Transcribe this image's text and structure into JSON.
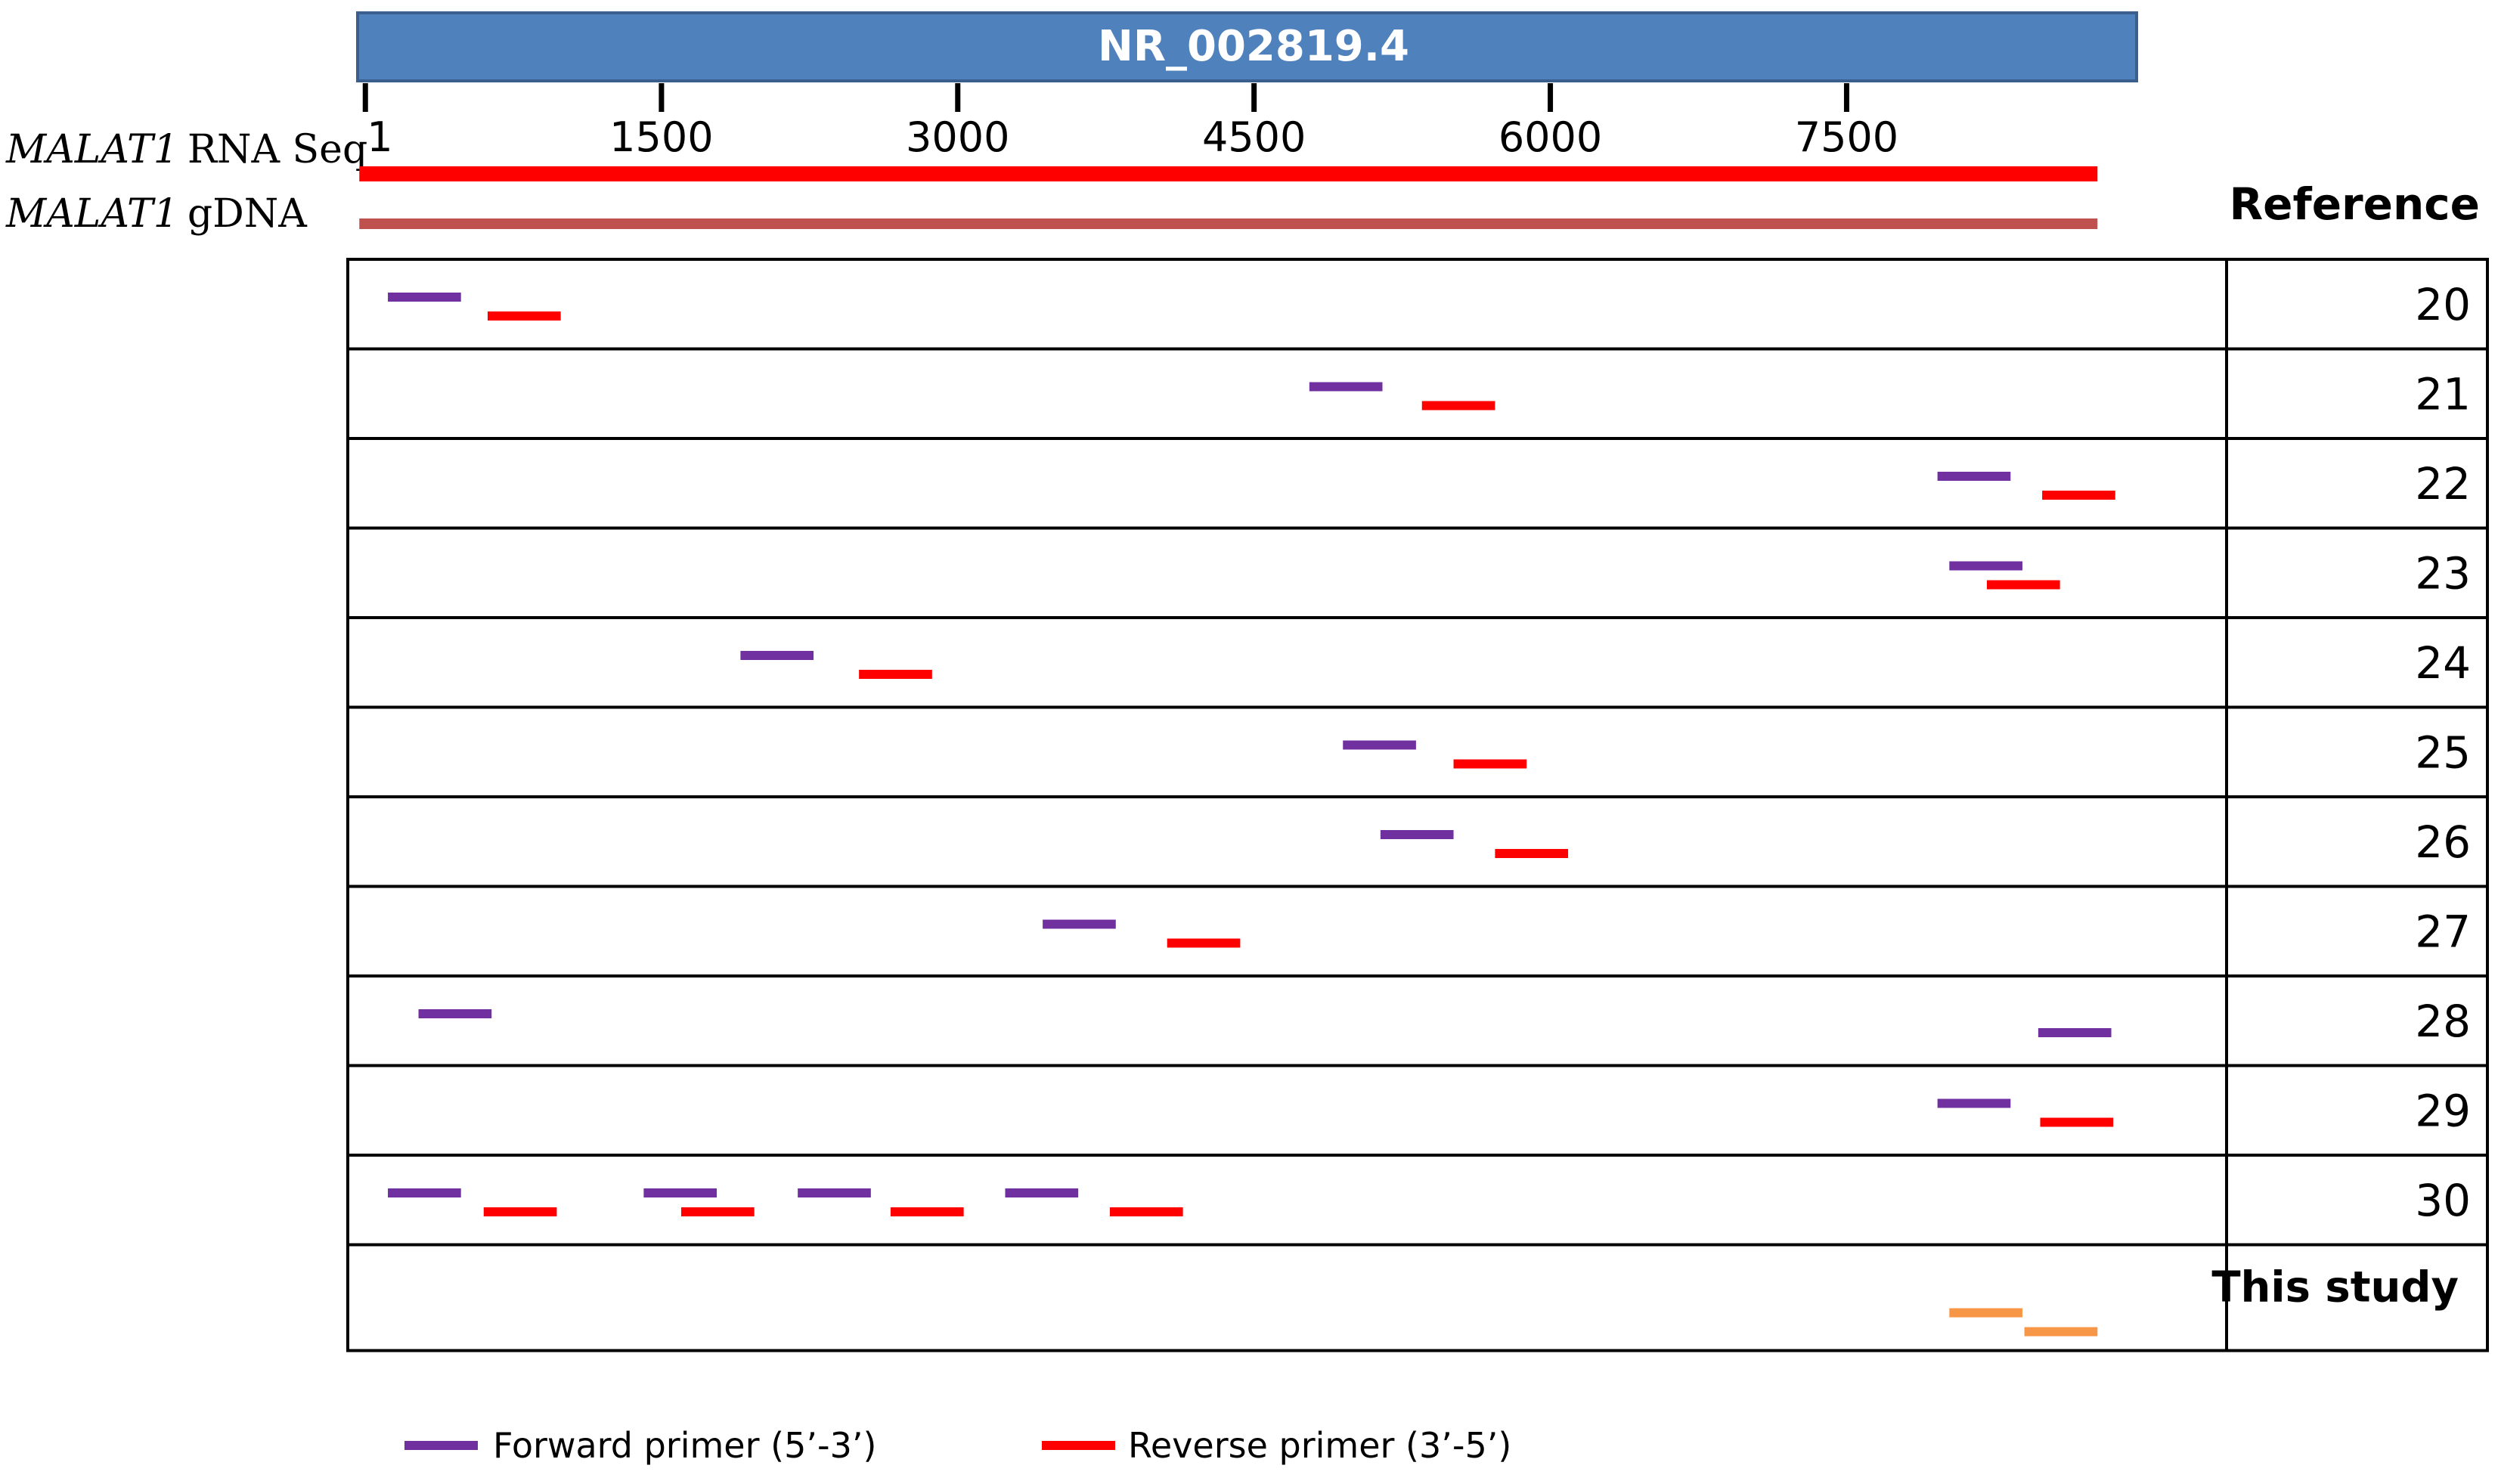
{
  "header": {
    "accession": "NR_002819.4",
    "bar_color": "#4f81bd",
    "bar_border": "#3a5f8f"
  },
  "axis": {
    "min": 1,
    "max": 8940,
    "ticks": [
      {
        "label": "1",
        "value": 1
      },
      {
        "label": "1500",
        "value": 1500
      },
      {
        "label": "3000",
        "value": 3000
      },
      {
        "label": "4500",
        "value": 4500
      },
      {
        "label": "6000",
        "value": 6000
      },
      {
        "label": "7500",
        "value": 7500
      }
    ]
  },
  "tracks": {
    "rna": {
      "gene": "MALAT1",
      "label": "RNA Seq",
      "start": 1,
      "end": 8770,
      "color": "#ff0000"
    },
    "gdna": {
      "gene": "MALAT1",
      "label": "gDNA",
      "start": 1,
      "end": 8770,
      "color": "#c0504d"
    }
  },
  "reference_header": "Reference",
  "colors": {
    "forward": "#7030a0",
    "reverse": "#ff0000",
    "this_study": "#f79646"
  },
  "primer_length": 370,
  "rows": [
    {
      "reference": "20",
      "primers": [
        {
          "type": "forward",
          "start": 115,
          "lane": 0
        },
        {
          "type": "reverse",
          "start": 620,
          "lane": 1
        }
      ]
    },
    {
      "reference": "21",
      "primers": [
        {
          "type": "forward",
          "start": 4780,
          "lane": 0
        },
        {
          "type": "reverse",
          "start": 5350,
          "lane": 1
        }
      ]
    },
    {
      "reference": "22",
      "primers": [
        {
          "type": "forward",
          "start": 7960,
          "lane": 0
        },
        {
          "type": "reverse",
          "start": 8490,
          "lane": 1
        }
      ]
    },
    {
      "reference": "23",
      "primers": [
        {
          "type": "forward",
          "start": 8020,
          "lane": 0
        },
        {
          "type": "reverse",
          "start": 8210,
          "lane": 1
        }
      ]
    },
    {
      "reference": "24",
      "primers": [
        {
          "type": "forward",
          "start": 1900,
          "lane": 0
        },
        {
          "type": "reverse",
          "start": 2500,
          "lane": 1
        }
      ]
    },
    {
      "reference": "25",
      "primers": [
        {
          "type": "forward",
          "start": 4950,
          "lane": 0
        },
        {
          "type": "reverse",
          "start": 5510,
          "lane": 1
        }
      ]
    },
    {
      "reference": "26",
      "primers": [
        {
          "type": "forward",
          "start": 5140,
          "lane": 0
        },
        {
          "type": "reverse",
          "start": 5720,
          "lane": 1
        }
      ]
    },
    {
      "reference": "27",
      "primers": [
        {
          "type": "forward",
          "start": 3430,
          "lane": 0
        },
        {
          "type": "reverse",
          "start": 4060,
          "lane": 1
        }
      ]
    },
    {
      "reference": "28",
      "primers": [
        {
          "type": "forward",
          "start": 270,
          "lane": 0
        },
        {
          "type": "forward",
          "start": 8470,
          "lane": 1
        }
      ]
    },
    {
      "reference": "29",
      "primers": [
        {
          "type": "forward",
          "start": 7960,
          "lane": 0
        },
        {
          "type": "reverse",
          "start": 8480,
          "lane": 1
        }
      ]
    },
    {
      "reference": "30",
      "primers": [
        {
          "type": "forward",
          "start": 115,
          "lane": 0
        },
        {
          "type": "reverse",
          "start": 600,
          "lane": 1
        },
        {
          "type": "forward",
          "start": 1410,
          "lane": 0
        },
        {
          "type": "reverse",
          "start": 1600,
          "lane": 1
        },
        {
          "type": "forward",
          "start": 2190,
          "lane": 0
        },
        {
          "type": "reverse",
          "start": 2660,
          "lane": 1
        },
        {
          "type": "forward",
          "start": 3240,
          "lane": 0
        },
        {
          "type": "reverse",
          "start": 3770,
          "lane": 1
        }
      ]
    },
    {
      "reference": "This study",
      "primers": [
        {
          "type": "this_study",
          "start": 8020,
          "lane": 0
        },
        {
          "type": "this_study",
          "start": 8400,
          "lane": 1
        }
      ]
    }
  ],
  "legend": {
    "forward": "Forward primer (5’-3’)",
    "reverse": "Reverse primer (3’-5’)"
  }
}
